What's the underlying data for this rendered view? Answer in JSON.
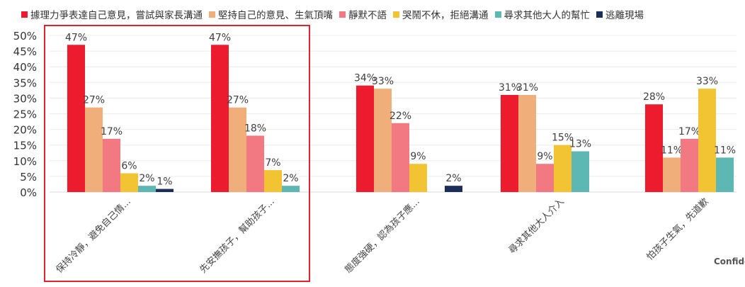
{
  "chart_data": {
    "type": "bar",
    "categories": [
      "保持冷靜，避免自己情...",
      "先安撫孩子，幫助孩子...",
      "態度強硬，認為孩子應...",
      "尋求其他大人介入",
      "怕孩子生氣，先道歉"
    ],
    "series": [
      {
        "name": "據理力爭表達自己意見，嘗試與家長溝通",
        "color": "#ec1c2e",
        "values": [
          47,
          47,
          34,
          31,
          28
        ],
        "labels": [
          "47%",
          "47%",
          "34%",
          "31%",
          "28%"
        ]
      },
      {
        "name": "堅持自己的意見、生氣頂嘴",
        "color": "#f0ae7a",
        "values": [
          27,
          27,
          33,
          31,
          11
        ],
        "labels": [
          "27%",
          "27%",
          "33%",
          "31%",
          "11%"
        ]
      },
      {
        "name": "靜默不語",
        "color": "#f27882",
        "values": [
          17,
          18,
          22,
          9,
          17
        ],
        "labels": [
          "17%",
          "18%",
          "22%",
          "9%",
          "17%"
        ]
      },
      {
        "name": "哭鬧不休，拒絕溝通",
        "color": "#f2c433",
        "values": [
          6,
          7,
          9,
          15,
          33
        ],
        "labels": [
          "6%",
          "7%",
          "9%",
          "15%",
          "33%"
        ]
      },
      {
        "name": "尋求其他大人的幫忙",
        "color": "#5db7b3",
        "values": [
          2,
          2,
          null,
          13,
          11
        ],
        "labels": [
          "2%",
          "2%",
          "",
          "13%",
          "11%"
        ]
      },
      {
        "name": "逃離現場",
        "color": "#1a2e57",
        "values": [
          1,
          null,
          2,
          null,
          null
        ],
        "labels": [
          "1%",
          "",
          "2%",
          "",
          ""
        ]
      }
    ],
    "yticks": [
      "0%",
      "5%",
      "10%",
      "15%",
      "20%",
      "25%",
      "30%",
      "35%",
      "40%",
      "45%",
      "50%"
    ],
    "ylim": [
      0,
      50
    ],
    "grid": true,
    "legend_position": "top",
    "highlight_box": {
      "groups": [
        0,
        1
      ],
      "color": "#e0232f"
    }
  },
  "footer": {
    "text": "Confide"
  }
}
